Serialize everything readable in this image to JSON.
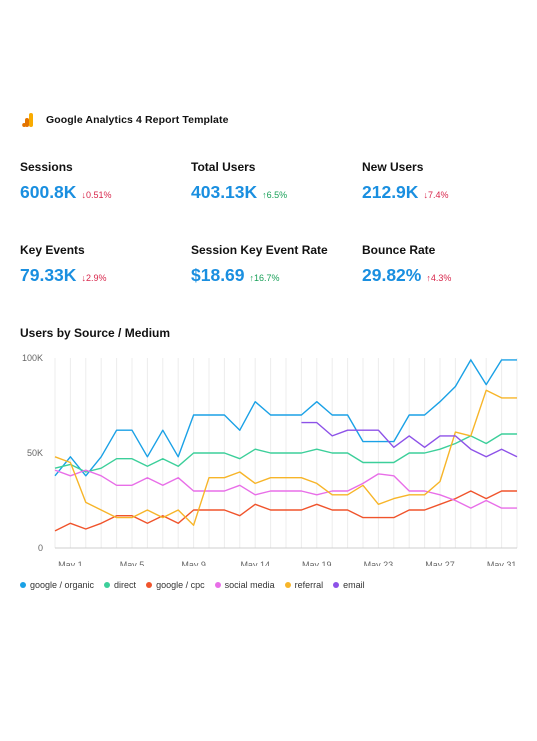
{
  "header": {
    "title": "Google Analytics 4 Report Template",
    "icon": "google-analytics-logo-icon"
  },
  "metrics": [
    {
      "label": "Sessions",
      "value": "600.8K",
      "delta": "0.51%",
      "direction": "down",
      "arrow": "↓",
      "color": "#d8264b"
    },
    {
      "label": "Total Users",
      "value": "403.13K",
      "delta": "6.5%",
      "direction": "up",
      "arrow": "↑",
      "color": "#18a058"
    },
    {
      "label": "New Users",
      "value": "212.9K",
      "delta": "7.4%",
      "direction": "down",
      "arrow": "↓",
      "color": "#d8264b"
    },
    {
      "label": "Key Events",
      "value": "79.33K",
      "delta": "2.9%",
      "direction": "down",
      "arrow": "↓",
      "color": "#d8264b"
    },
    {
      "label": "Session Key Event Rate",
      "value": "$18.69",
      "delta": "16.7%",
      "direction": "up",
      "arrow": "↑",
      "color": "#18a058"
    },
    {
      "label": "Bounce Rate",
      "value": "29.82%",
      "delta": "4.3%",
      "direction": "up",
      "arrow": "↑",
      "color": "#d8264b"
    }
  ],
  "chart_data": {
    "type": "line",
    "title": "Users by Source / Medium",
    "x_ticks": [
      "May 1",
      "May 5",
      "May 9",
      "May 14",
      "May 19",
      "May 23",
      "May 27",
      "May 31"
    ],
    "y_ticks": [
      "0",
      "50K",
      "100K"
    ],
    "ylim": [
      0,
      100000
    ],
    "grid": "vertical",
    "legend_position": "bottom-left",
    "series": [
      {
        "name": "google / organic",
        "color": "#1aa1e6",
        "values": [
          38000,
          48000,
          38000,
          48000,
          62000,
          62000,
          48000,
          62000,
          48000,
          70000,
          70000,
          70000,
          62000,
          77000,
          70000,
          70000,
          70000,
          77000,
          70000,
          70000,
          56000,
          56000,
          56000,
          70000,
          70000,
          77000,
          85000,
          99000,
          86000,
          99000,
          99000
        ]
      },
      {
        "name": "direct",
        "color": "#3ccf9a",
        "values": [
          42000,
          44000,
          40000,
          42000,
          47000,
          47000,
          43000,
          47000,
          43000,
          50000,
          50000,
          50000,
          47000,
          52000,
          50000,
          50000,
          50000,
          52000,
          50000,
          50000,
          45000,
          45000,
          45000,
          50000,
          50000,
          52000,
          55000,
          59000,
          55000,
          60000,
          60000
        ]
      },
      {
        "name": "google / cpc",
        "color": "#f0542c",
        "values": [
          9000,
          13000,
          10000,
          13000,
          17000,
          17000,
          13000,
          17000,
          13000,
          20000,
          20000,
          20000,
          17000,
          23000,
          20000,
          20000,
          20000,
          23000,
          20000,
          20000,
          16000,
          16000,
          16000,
          20000,
          20000,
          23000,
          26000,
          30000,
          26000,
          30000,
          30000
        ]
      },
      {
        "name": "social media",
        "color": "#e86ee8",
        "values": [
          41000,
          38000,
          41000,
          38000,
          33000,
          33000,
          37000,
          33000,
          37000,
          30000,
          30000,
          30000,
          33000,
          28000,
          30000,
          30000,
          30000,
          28000,
          30000,
          30000,
          34000,
          39000,
          38000,
          30000,
          30000,
          28000,
          25000,
          21000,
          25000,
          21000,
          21000
        ]
      },
      {
        "name": "referral",
        "color": "#f7b529",
        "values": [
          48000,
          45000,
          24000,
          20000,
          16000,
          16000,
          20000,
          16000,
          20000,
          12000,
          37000,
          37000,
          40000,
          34000,
          37000,
          37000,
          37000,
          34000,
          28000,
          28000,
          33000,
          23000,
          26000,
          28000,
          28000,
          35000,
          61000,
          59000,
          83000,
          79000,
          79000
        ]
      },
      {
        "name": "email",
        "color": "#8d52e8",
        "values": [
          null,
          null,
          null,
          null,
          null,
          null,
          null,
          null,
          null,
          null,
          null,
          null,
          null,
          null,
          null,
          null,
          66000,
          66000,
          59000,
          62000,
          62000,
          62000,
          53000,
          59000,
          53000,
          59000,
          59000,
          52000,
          48000,
          52000,
          48000
        ]
      }
    ]
  }
}
